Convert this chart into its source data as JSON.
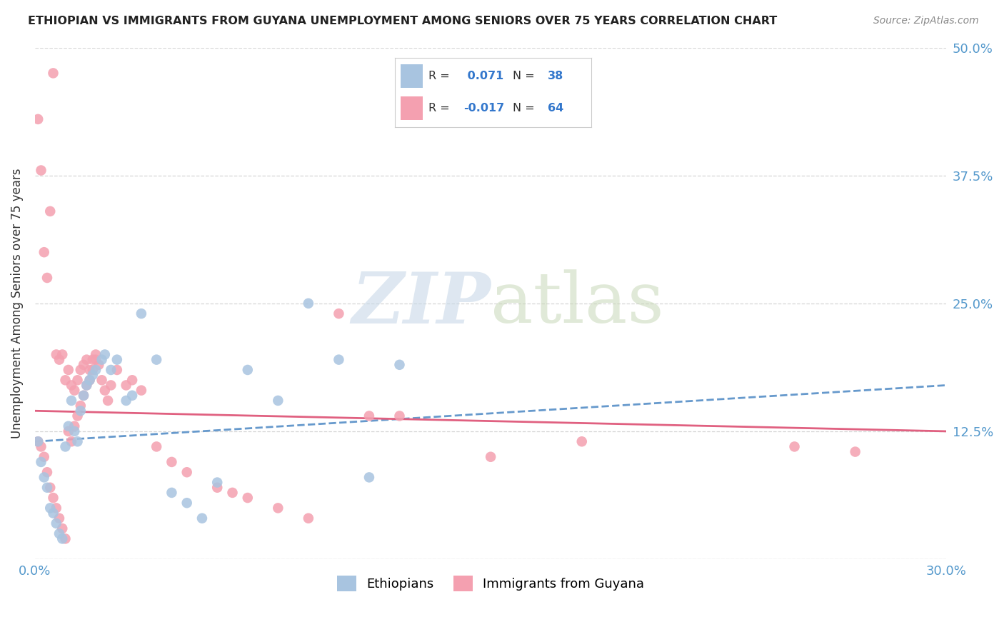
{
  "title": "ETHIOPIAN VS IMMIGRANTS FROM GUYANA UNEMPLOYMENT AMONG SENIORS OVER 75 YEARS CORRELATION CHART",
  "source": "Source: ZipAtlas.com",
  "ylabel": "Unemployment Among Seniors over 75 years",
  "xlim": [
    0.0,
    0.3
  ],
  "ylim": [
    0.0,
    0.5
  ],
  "yticks": [
    0.0,
    0.125,
    0.25,
    0.375,
    0.5
  ],
  "ytick_labels": [
    "",
    "12.5%",
    "25.0%",
    "37.5%",
    "50.0%"
  ],
  "xticks": [
    0.0,
    0.05,
    0.1,
    0.15,
    0.2,
    0.25,
    0.3
  ],
  "xtick_labels": [
    "0.0%",
    "",
    "",
    "",
    "",
    "",
    "30.0%"
  ],
  "legend_R_blue": "0.071",
  "legend_N_blue": "38",
  "legend_R_pink": "-0.017",
  "legend_N_pink": "64",
  "blue_color": "#a8c4e0",
  "pink_color": "#f4a0b0",
  "trend_blue_color": "#6699cc",
  "trend_pink_color": "#e06080",
  "blue_scatter_x": [
    0.001,
    0.002,
    0.003,
    0.004,
    0.005,
    0.006,
    0.007,
    0.008,
    0.009,
    0.01,
    0.011,
    0.012,
    0.013,
    0.014,
    0.015,
    0.016,
    0.017,
    0.018,
    0.019,
    0.02,
    0.022,
    0.023,
    0.025,
    0.027,
    0.03,
    0.032,
    0.035,
    0.04,
    0.045,
    0.05,
    0.055,
    0.06,
    0.07,
    0.08,
    0.09,
    0.1,
    0.11,
    0.12
  ],
  "blue_scatter_y": [
    0.115,
    0.095,
    0.08,
    0.07,
    0.05,
    0.045,
    0.035,
    0.025,
    0.02,
    0.11,
    0.13,
    0.155,
    0.125,
    0.115,
    0.145,
    0.16,
    0.17,
    0.175,
    0.18,
    0.185,
    0.195,
    0.2,
    0.185,
    0.195,
    0.155,
    0.16,
    0.24,
    0.195,
    0.065,
    0.055,
    0.04,
    0.075,
    0.185,
    0.155,
    0.25,
    0.195,
    0.08,
    0.19
  ],
  "pink_scatter_x": [
    0.001,
    0.002,
    0.003,
    0.004,
    0.005,
    0.006,
    0.007,
    0.008,
    0.009,
    0.01,
    0.011,
    0.012,
    0.013,
    0.014,
    0.015,
    0.016,
    0.017,
    0.018,
    0.019,
    0.02,
    0.001,
    0.002,
    0.003,
    0.004,
    0.005,
    0.006,
    0.007,
    0.008,
    0.009,
    0.01,
    0.011,
    0.012,
    0.013,
    0.014,
    0.015,
    0.016,
    0.017,
    0.018,
    0.019,
    0.02,
    0.021,
    0.022,
    0.023,
    0.024,
    0.025,
    0.027,
    0.03,
    0.032,
    0.035,
    0.04,
    0.045,
    0.05,
    0.06,
    0.065,
    0.07,
    0.08,
    0.09,
    0.1,
    0.11,
    0.12,
    0.15,
    0.18,
    0.25,
    0.27
  ],
  "pink_scatter_y": [
    0.115,
    0.11,
    0.1,
    0.085,
    0.07,
    0.06,
    0.05,
    0.04,
    0.03,
    0.02,
    0.125,
    0.115,
    0.13,
    0.14,
    0.15,
    0.16,
    0.17,
    0.175,
    0.185,
    0.195,
    0.43,
    0.38,
    0.3,
    0.275,
    0.34,
    0.475,
    0.2,
    0.195,
    0.2,
    0.175,
    0.185,
    0.17,
    0.165,
    0.175,
    0.185,
    0.19,
    0.195,
    0.185,
    0.195,
    0.2,
    0.19,
    0.175,
    0.165,
    0.155,
    0.17,
    0.185,
    0.17,
    0.175,
    0.165,
    0.11,
    0.095,
    0.085,
    0.07,
    0.065,
    0.06,
    0.05,
    0.04,
    0.24,
    0.14,
    0.14,
    0.1,
    0.115,
    0.11,
    0.105
  ]
}
